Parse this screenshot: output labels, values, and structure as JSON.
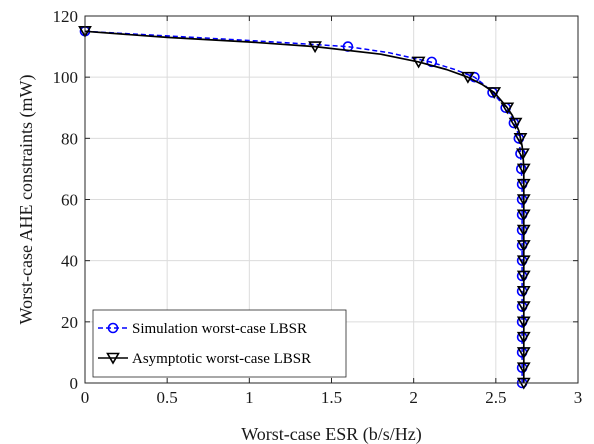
{
  "chart_data": {
    "type": "line",
    "xlabel": "Worst-case ESR (b/s/Hz)",
    "ylabel": "Worst-case AHE constraints (mW)",
    "xlim": [
      0,
      3
    ],
    "ylim": [
      0,
      120
    ],
    "xticks": [
      "0",
      "0.5",
      "1",
      "1.5",
      "2",
      "2.5",
      "3"
    ],
    "yticks": [
      "0",
      "20",
      "40",
      "60",
      "80",
      "100",
      "120"
    ],
    "grid": true,
    "legend_position": "bottom-left",
    "series": [
      {
        "name": "Simulation worst-case LBSR",
        "color": "#0000ff",
        "line_style": "dashed",
        "marker": "circle",
        "curve": [
          [
            0.0,
            115
          ],
          [
            0.5,
            113.5
          ],
          [
            1.0,
            112
          ],
          [
            1.3,
            111
          ],
          [
            1.6,
            110
          ],
          [
            1.85,
            108
          ],
          [
            2.1,
            105
          ],
          [
            2.25,
            102.5
          ],
          [
            2.37,
            100
          ],
          [
            2.43,
            97.5
          ],
          [
            2.48,
            95
          ],
          [
            2.52,
            92.5
          ],
          [
            2.56,
            90
          ],
          [
            2.59,
            87.5
          ],
          [
            2.61,
            85
          ],
          [
            2.63,
            82.5
          ],
          [
            2.64,
            80
          ],
          [
            2.645,
            77.5
          ],
          [
            2.65,
            75
          ],
          [
            2.655,
            70
          ],
          [
            2.66,
            65
          ],
          [
            2.66,
            0
          ]
        ],
        "markers": [
          [
            0.0,
            115
          ],
          [
            1.6,
            110
          ],
          [
            2.11,
            105
          ],
          [
            2.37,
            100
          ],
          [
            2.48,
            95
          ],
          [
            2.56,
            90
          ],
          [
            2.61,
            85
          ],
          [
            2.64,
            80
          ],
          [
            2.65,
            75
          ],
          [
            2.655,
            70
          ],
          [
            2.66,
            65
          ],
          [
            2.66,
            60
          ],
          [
            2.66,
            55
          ],
          [
            2.66,
            50
          ],
          [
            2.66,
            45
          ],
          [
            2.66,
            40
          ],
          [
            2.66,
            35
          ],
          [
            2.66,
            30
          ],
          [
            2.66,
            25
          ],
          [
            2.66,
            20
          ],
          [
            2.66,
            15
          ],
          [
            2.66,
            10
          ],
          [
            2.66,
            5
          ],
          [
            2.66,
            0
          ]
        ]
      },
      {
        "name": "Asymptotic worst-case LBSR",
        "color": "#000000",
        "line_style": "solid",
        "marker": "triangle-down",
        "curve": [
          [
            0.0,
            115
          ],
          [
            0.5,
            113
          ],
          [
            1.0,
            111.5
          ],
          [
            1.4,
            110
          ],
          [
            1.8,
            107.5
          ],
          [
            2.03,
            105
          ],
          [
            2.2,
            102.5
          ],
          [
            2.33,
            100
          ],
          [
            2.42,
            97.5
          ],
          [
            2.49,
            95
          ],
          [
            2.53,
            92.5
          ],
          [
            2.57,
            90
          ],
          [
            2.6,
            87.5
          ],
          [
            2.62,
            85
          ],
          [
            2.64,
            82.5
          ],
          [
            2.65,
            80
          ],
          [
            2.66,
            77.5
          ],
          [
            2.665,
            75
          ],
          [
            2.67,
            70
          ],
          [
            2.67,
            0
          ]
        ],
        "markers": [
          [
            0.0,
            115
          ],
          [
            1.4,
            110
          ],
          [
            2.03,
            105
          ],
          [
            2.33,
            100
          ],
          [
            2.49,
            95
          ],
          [
            2.57,
            90
          ],
          [
            2.62,
            85
          ],
          [
            2.65,
            80
          ],
          [
            2.665,
            75
          ],
          [
            2.67,
            70
          ],
          [
            2.67,
            65
          ],
          [
            2.67,
            60
          ],
          [
            2.67,
            55
          ],
          [
            2.67,
            50
          ],
          [
            2.67,
            45
          ],
          [
            2.67,
            40
          ],
          [
            2.67,
            35
          ],
          [
            2.67,
            30
          ],
          [
            2.67,
            25
          ],
          [
            2.67,
            20
          ],
          [
            2.67,
            15
          ],
          [
            2.67,
            10
          ],
          [
            2.67,
            5
          ],
          [
            2.67,
            0
          ]
        ]
      }
    ]
  }
}
